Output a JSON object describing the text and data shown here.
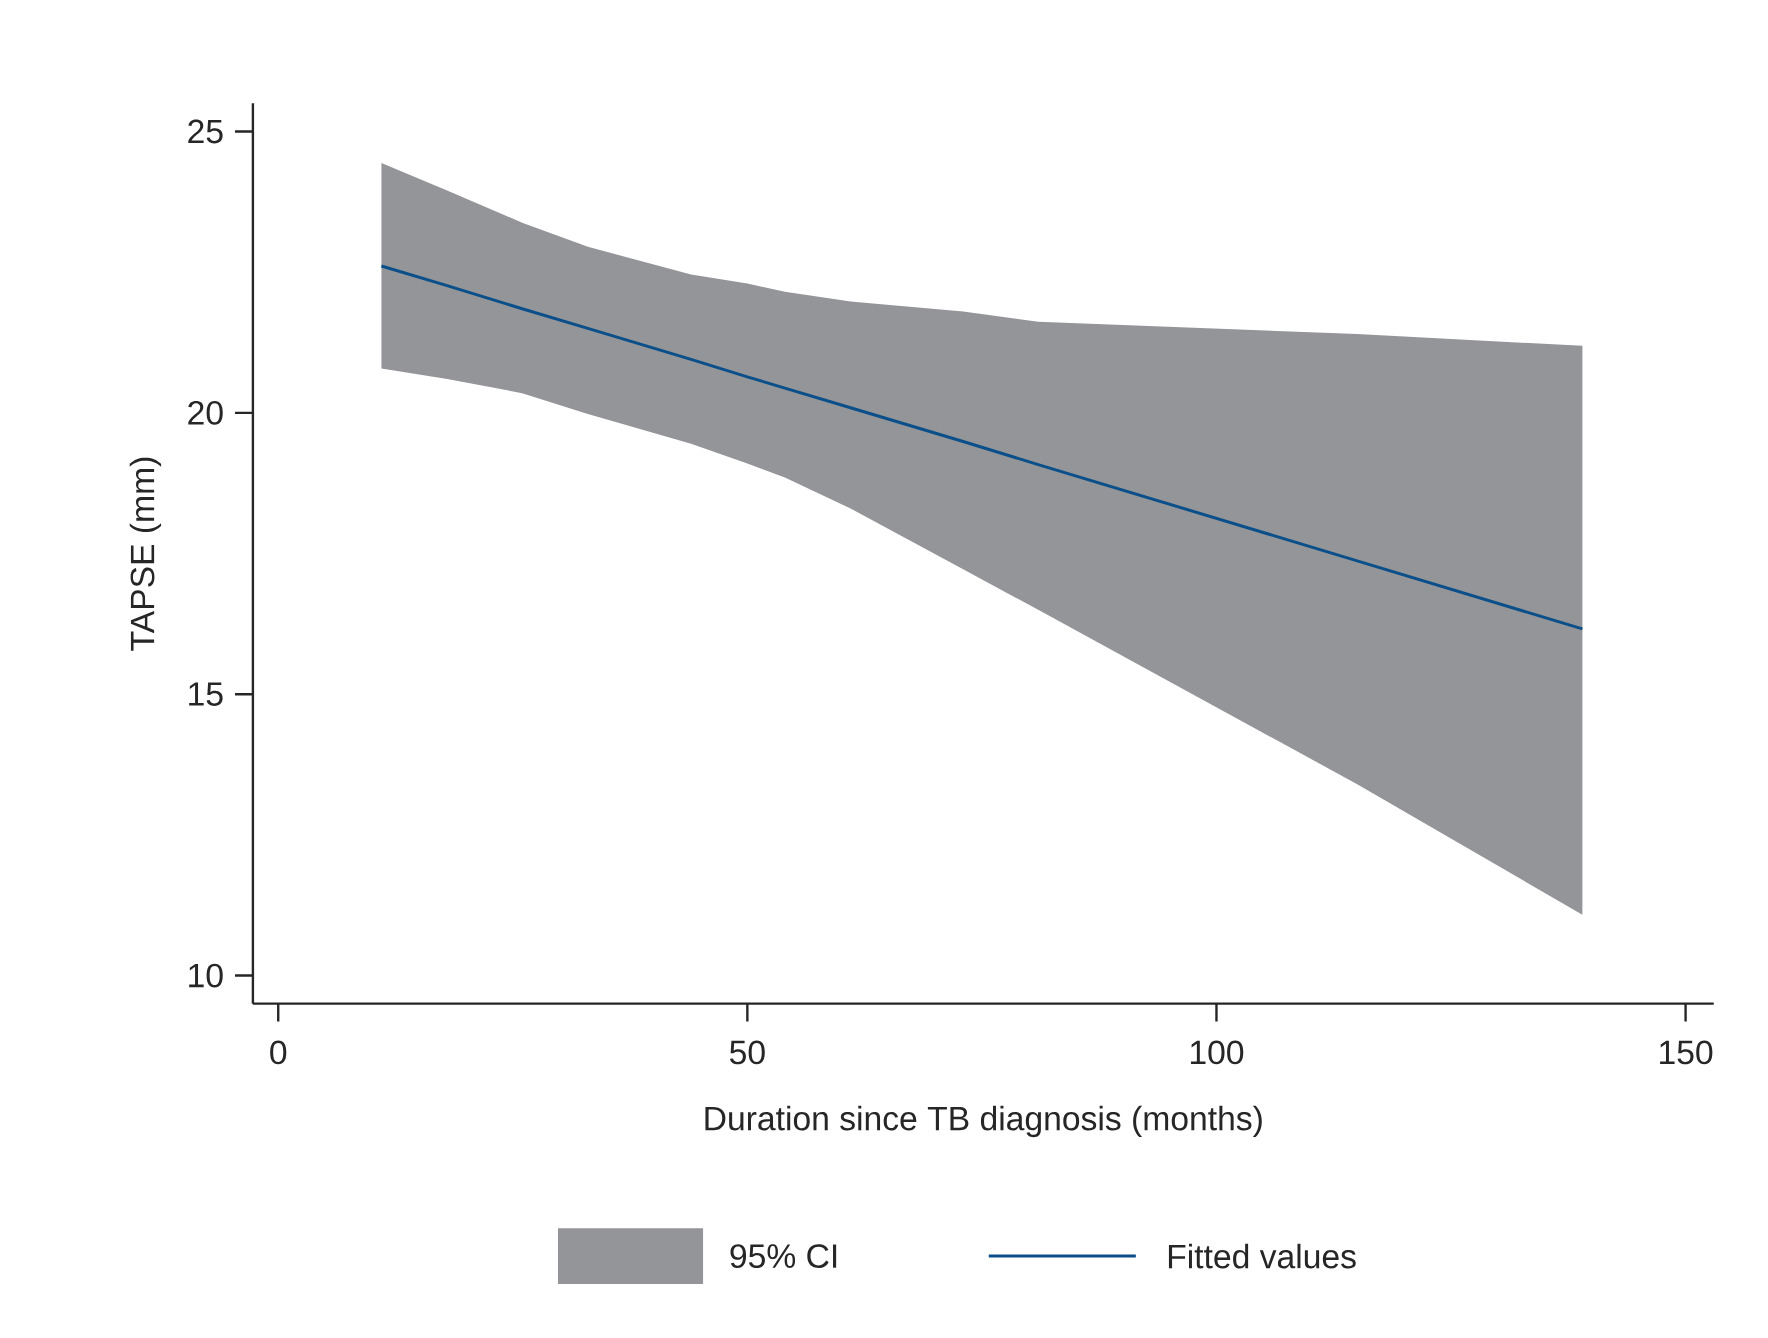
{
  "chart_data": {
    "type": "line",
    "xlabel": "Duration since TB diagnosis (months)",
    "ylabel": "TAPSE (mm)",
    "xlim": [
      -2.7,
      153
    ],
    "ylim": [
      9.5,
      25.5
    ],
    "xticks": [
      0,
      50,
      100,
      150
    ],
    "yticks": [
      10,
      15,
      20,
      25
    ],
    "legend": "bottom",
    "grid": false,
    "annotations": [
      "95% CI"
    ],
    "series": [
      {
        "name": "Fitted values",
        "color": "#0b4f8a",
        "x": [
          11,
          18,
          26,
          33,
          44,
          50,
          54,
          61,
          73,
          81,
          115,
          139
        ],
        "values": [
          22.61,
          22.26,
          21.85,
          21.5,
          20.95,
          20.64,
          20.44,
          20.09,
          19.49,
          19.08,
          17.37,
          16.16
        ],
        "lower": [
          20.79,
          20.6,
          20.35,
          19.98,
          19.45,
          19.1,
          18.85,
          18.3,
          17.22,
          16.5,
          13.4,
          11.08
        ],
        "upper": [
          24.44,
          23.95,
          23.38,
          22.95,
          22.46,
          22.3,
          22.15,
          21.98,
          21.8,
          21.62,
          21.4,
          21.19
        ]
      }
    ]
  }
}
